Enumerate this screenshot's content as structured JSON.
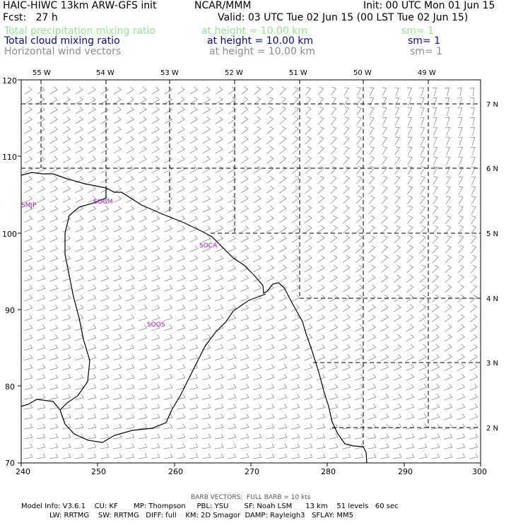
{
  "header": {
    "title_left": "HAIC-HIWC 13km ARW-GFS init",
    "title_center": "NCAR/MMM",
    "init": "Init: 00 UTC Mon 01 Jun 15",
    "fcst": "Fcst:   27 h",
    "valid": "Valid: 03 UTC Tue 02 Jun 15 (00 LST Tue 02 Jun 15)"
  },
  "fields": [
    {
      "name": "Total precipitation mixing ratio",
      "height": "at height = 10.00 km",
      "sm": "sm= 1",
      "color": "#90e890"
    },
    {
      "name": "Total cloud mixing ratio",
      "height": "at height = 10.00 km",
      "sm": "sm= 1",
      "color": "#0000c8"
    },
    {
      "name": "Horizontal wind vectors",
      "height": "at height = 10.00 km",
      "sm": "sm= 1",
      "color": "#8c8c8c"
    }
  ],
  "axes": {
    "y_ticks": [
      "120",
      "110",
      "100",
      "90",
      "80",
      "70"
    ],
    "x_ticks": [
      "240",
      "250",
      "260",
      "270",
      "280",
      "290",
      "300"
    ],
    "lon_labels": [
      "55 W",
      "54 W",
      "53 W",
      "52 W",
      "51 W",
      "50 W",
      "49 W"
    ],
    "lat_labels": [
      "7 N",
      "6 N",
      "5 N",
      "4 N",
      "3 N",
      "2 N"
    ]
  },
  "places": [
    {
      "label": "SMJP",
      "color": "#cc00cc"
    },
    {
      "label": "SOGM",
      "color": "#cc00cc"
    },
    {
      "label": "SOCA",
      "color": "#cc00cc"
    },
    {
      "label": "SOOS",
      "color": "#cc00cc"
    }
  ],
  "footer": {
    "barb": "BARB VECTORS:  FULL BARB = 10 kts",
    "line1": "Model Info: V3.6.1    CU: KF       MP: Thompson     PBL: YSU       SF: Noah LSM      13 km    51 levels   60 sec",
    "line2": "LW: RRTMG    SW: RRTMG   DIFF: full    KM: 2D Smagor  DAMP: Rayleigh3   SFLAY: MM5"
  },
  "colors": {
    "coast": "#000000",
    "grid": "#000000",
    "barb": "#8c8c8c",
    "label": "#cc00cc"
  }
}
